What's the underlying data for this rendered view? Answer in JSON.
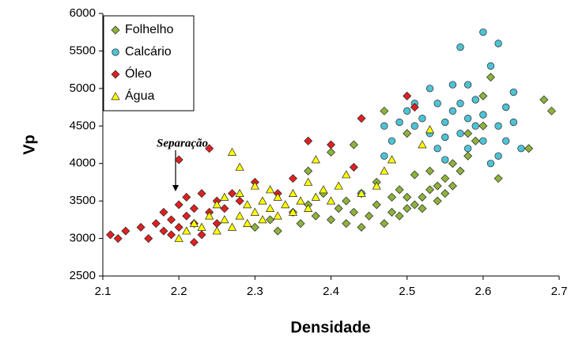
{
  "chart_data": {
    "type": "scatter",
    "x_label": "Densidade",
    "y_label": "Vp",
    "annotation": "Separação",
    "xlim": [
      2.1,
      2.7
    ],
    "xticks": [
      2.1,
      2.2,
      2.3,
      2.4,
      2.5,
      2.6,
      2.7
    ],
    "ylim": [
      2500,
      6000
    ],
    "yticks": [
      2500,
      3000,
      3500,
      4000,
      4500,
      5000,
      5500,
      6000
    ],
    "legend": "upper left",
    "series": [
      {
        "name": "Folhelho",
        "color": "#8db33a",
        "marker": "diamond",
        "x": [
          2.3,
          2.32,
          2.33,
          2.35,
          2.36,
          2.37,
          2.38,
          2.39,
          2.4,
          2.4,
          2.41,
          2.42,
          2.42,
          2.43,
          2.44,
          2.44,
          2.45,
          2.46,
          2.46,
          2.47,
          2.47,
          2.48,
          2.48,
          2.49,
          2.49,
          2.5,
          2.5,
          2.51,
          2.51,
          2.52,
          2.52,
          2.53,
          2.53,
          2.54,
          2.54,
          2.55,
          2.55,
          2.56,
          2.56,
          2.57,
          2.58,
          2.58,
          2.59,
          2.6,
          2.6,
          2.61,
          2.62,
          2.66,
          2.68,
          2.69,
          2.37,
          2.43,
          2.5
        ],
        "values": [
          3150,
          3250,
          3100,
          3350,
          3200,
          3450,
          3300,
          3600,
          3250,
          4150,
          3400,
          3200,
          3500,
          3350,
          3600,
          3150,
          3300,
          3450,
          3750,
          3200,
          4700,
          3350,
          3550,
          3300,
          3650,
          3400,
          3550,
          3450,
          3850,
          3550,
          3400,
          3650,
          3900,
          3700,
          3500,
          3800,
          3600,
          4000,
          3700,
          3900,
          4100,
          4400,
          4300,
          4900,
          4500,
          5150,
          3800,
          4200,
          4850,
          4700,
          3900,
          4250,
          4400
        ]
      },
      {
        "name": "Calcário",
        "color": "#4fc3d6",
        "marker": "circle",
        "x": [
          2.44,
          2.47,
          2.48,
          2.49,
          2.5,
          2.51,
          2.52,
          2.53,
          2.53,
          2.54,
          2.54,
          2.55,
          2.55,
          2.56,
          2.56,
          2.57,
          2.57,
          2.57,
          2.58,
          2.58,
          2.59,
          2.59,
          2.6,
          2.6,
          2.6,
          2.61,
          2.61,
          2.62,
          2.62,
          2.62,
          2.63,
          2.63,
          2.64,
          2.64,
          2.65,
          2.58,
          2.55,
          2.47,
          2.51
        ],
        "values": [
          3600,
          4500,
          4300,
          4550,
          4700,
          4800,
          4600,
          4400,
          5000,
          4200,
          4800,
          4550,
          4350,
          4700,
          5050,
          4400,
          5550,
          4800,
          4600,
          4200,
          4500,
          4850,
          4300,
          5750,
          4650,
          5300,
          4000,
          4500,
          5600,
          4100,
          4750,
          4300,
          4550,
          4950,
          4200,
          5050,
          4050,
          4100,
          4500
        ]
      },
      {
        "name": "Óleo",
        "color": "#e02020",
        "marker": "diamond",
        "x": [
          2.11,
          2.12,
          2.13,
          2.15,
          2.16,
          2.17,
          2.18,
          2.18,
          2.19,
          2.19,
          2.2,
          2.2,
          2.2,
          2.21,
          2.21,
          2.22,
          2.22,
          2.23,
          2.23,
          2.24,
          2.24,
          2.25,
          2.25,
          2.26,
          2.27,
          2.28,
          2.3,
          2.33,
          2.37,
          2.4,
          2.44,
          2.5,
          2.51,
          2.43,
          2.35,
          2.22
        ],
        "values": [
          3050,
          3000,
          3100,
          3150,
          3000,
          3200,
          3100,
          3350,
          3250,
          3050,
          4050,
          3450,
          3150,
          3300,
          3550,
          3200,
          3400,
          3050,
          3600,
          3350,
          4200,
          3500,
          3200,
          3400,
          3600,
          3500,
          3750,
          3600,
          4300,
          4250,
          4600,
          4900,
          4750,
          3950,
          3800,
          2950
        ]
      },
      {
        "name": "Água",
        "color": "#ffff00",
        "marker": "triangle",
        "x": [
          2.2,
          2.21,
          2.22,
          2.23,
          2.24,
          2.25,
          2.25,
          2.26,
          2.26,
          2.27,
          2.27,
          2.28,
          2.28,
          2.29,
          2.29,
          2.3,
          2.3,
          2.31,
          2.31,
          2.32,
          2.32,
          2.33,
          2.33,
          2.34,
          2.35,
          2.35,
          2.36,
          2.37,
          2.37,
          2.38,
          2.38,
          2.39,
          2.4,
          2.41,
          2.42,
          2.44,
          2.46,
          2.47,
          2.48,
          2.52,
          2.53,
          2.28
        ],
        "values": [
          3000,
          3100,
          3200,
          3150,
          3300,
          3100,
          3450,
          3250,
          3550,
          3150,
          4150,
          3300,
          3600,
          3200,
          3450,
          3350,
          3700,
          3250,
          3500,
          3400,
          3650,
          3300,
          3550,
          3450,
          3350,
          3600,
          3500,
          3750,
          3400,
          3550,
          4050,
          3650,
          3500,
          3700,
          3850,
          3600,
          3700,
          3900,
          4050,
          4250,
          4450,
          3950
        ]
      }
    ]
  }
}
